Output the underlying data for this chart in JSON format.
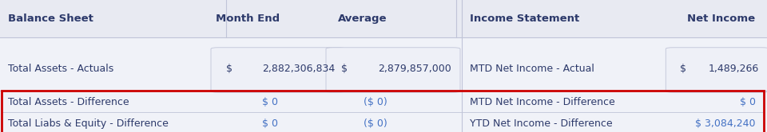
{
  "bg_color": "#f0f2f8",
  "white": "#ffffff",
  "header_bg": "#e8eaf2",
  "header_text_color": "#2d3a6b",
  "body_text_color": "#2d3a6b",
  "link_color": "#4472c4",
  "red_border": "#cc0000",
  "cell_bg": "#eef0f7",
  "divider_color": "#c0c4d8",
  "col_headers": [
    "Balance Sheet",
    "Month End",
    "Average",
    "Income Statement",
    "Net Income"
  ],
  "row1_label_left": "Total Assets - Actuals",
  "row1_month_end_dollar": "$",
  "row1_month_end_val": "2,882,306,834",
  "row1_avg_dollar": "$",
  "row1_avg_val": "2,879,857,000",
  "row1_label_right": "MTD Net Income - Actual",
  "row1_net_dollar": "$",
  "row1_net_val": "1,489,266",
  "row2_label_left": "Total Assets - Difference",
  "row2_month_end": "$ 0",
  "row2_avg": "($ 0)",
  "row2_label_right": "MTD Net Income - Difference",
  "row2_net": "$ 0",
  "row3_label_left": "Total Liabs & Equity - Difference",
  "row3_month_end": "$ 0",
  "row3_avg": "($ 0)",
  "row3_label_right": "YTD Net Income - Difference",
  "row3_net": "$ 3,084,240",
  "font_size_header": 9.5,
  "font_size_body": 9.0,
  "font_size_link": 9.0
}
